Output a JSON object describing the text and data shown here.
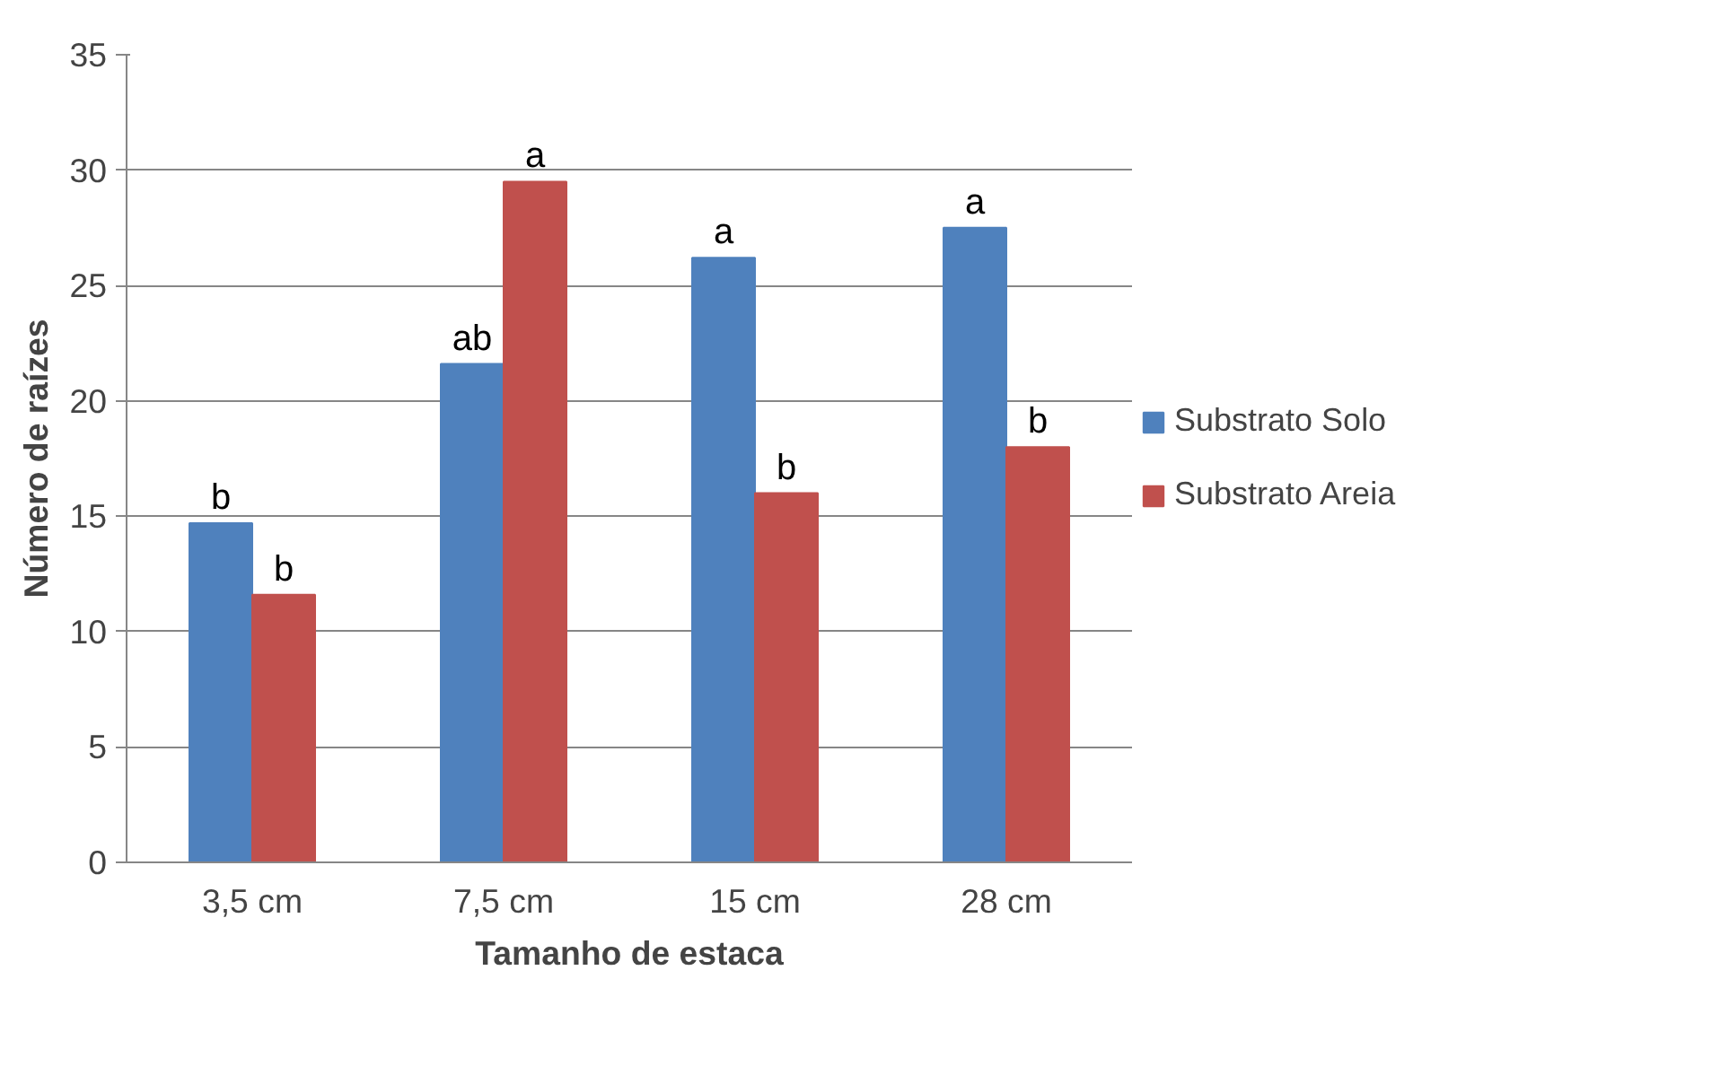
{
  "chart_data": {
    "type": "bar",
    "xlabel": "Tamanho de estaca",
    "ylabel": "Número de raízes",
    "categories": [
      "3,5 cm",
      "7,5 cm",
      "15 cm",
      "28 cm"
    ],
    "series": [
      {
        "name": "Substrato Solo",
        "color": "#4f81bd",
        "values": [
          14.7,
          21.6,
          26.2,
          27.5
        ],
        "value_labels": [
          "b",
          "ab",
          "a",
          "a"
        ]
      },
      {
        "name": "Substrato Areia",
        "color": "#c0504d",
        "values": [
          11.6,
          29.5,
          16.0,
          18.0
        ],
        "value_labels": [
          "b",
          "a",
          "b",
          "b"
        ]
      }
    ],
    "ylim": [
      0,
      35
    ],
    "yticks": [
      0,
      5,
      10,
      15,
      20,
      25,
      30,
      35
    ],
    "grid": "y",
    "legend": "right"
  }
}
